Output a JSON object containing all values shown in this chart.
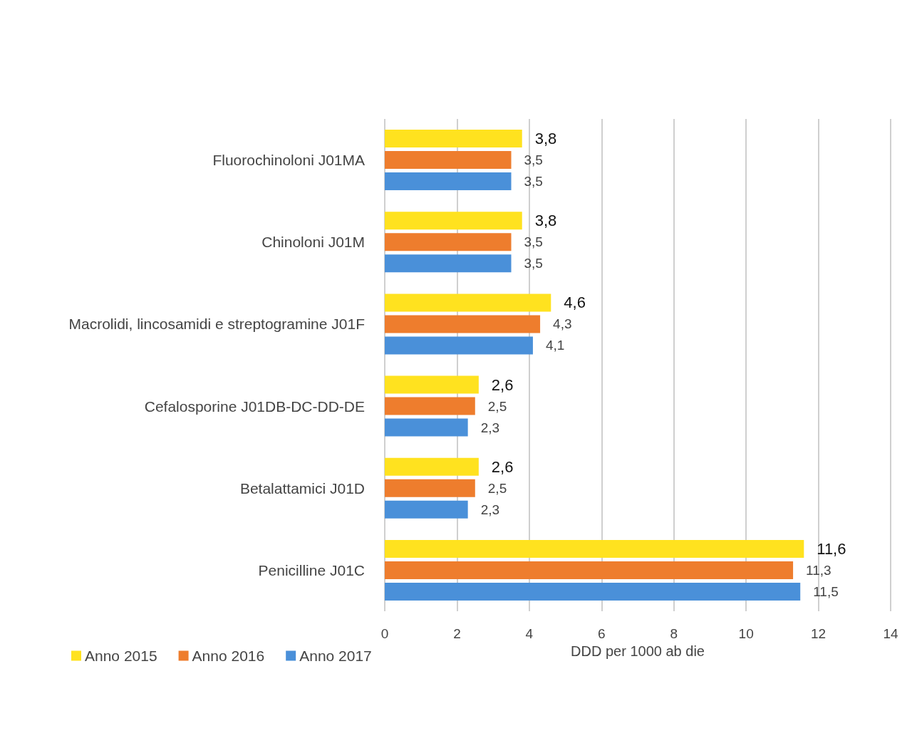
{
  "chart_data": {
    "type": "bar",
    "orientation": "horizontal",
    "xlabel": "DDD per 1000 ab die",
    "categories": [
      "Fluorochinoloni J01MA",
      "Chinoloni J01M",
      "Macrolidi, lincosamidi e streptogramine J01F",
      "Cefalosporine J01DB-DC-DD-DE",
      "Betalattamici J01D",
      "Penicilline J01C"
    ],
    "series": [
      {
        "name": "Anno 2015",
        "color": "#ffe21f",
        "values": [
          3.8,
          3.8,
          4.6,
          2.6,
          2.6,
          11.6
        ],
        "value_labels": [
          "3,8",
          "3,8",
          "4,6",
          "2,6",
          "2,6",
          "11,6"
        ]
      },
      {
        "name": "Anno 2016",
        "color": "#ee7d2d",
        "values": [
          3.5,
          3.5,
          4.3,
          2.5,
          2.5,
          11.3
        ],
        "value_labels": [
          "3,5",
          "3,5",
          "4,3",
          "2,5",
          "2,5",
          "11,3"
        ]
      },
      {
        "name": "Anno 2017",
        "color": "#4a90d9",
        "values": [
          3.5,
          3.5,
          4.1,
          2.3,
          2.3,
          11.5
        ],
        "value_labels": [
          "3,5",
          "3,5",
          "4,1",
          "2,3",
          "2,3",
          "11,5"
        ]
      }
    ],
    "xlim": [
      0,
      14
    ],
    "xticks": [
      0,
      2,
      4,
      6,
      8,
      10,
      12,
      14
    ],
    "grid": "x",
    "legend": "bottom left"
  }
}
